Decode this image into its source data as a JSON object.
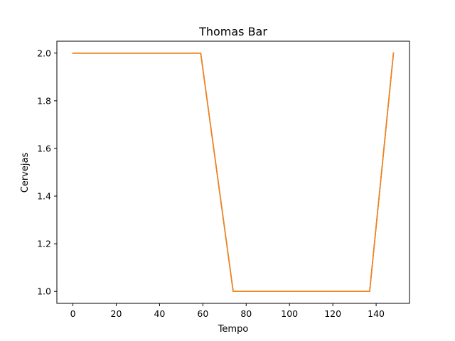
{
  "chart_data": {
    "type": "line",
    "title": "Thomas Bar",
    "xlabel": "Tempo",
    "ylabel": "Cervejas",
    "xlim": [
      -7.4,
      155.4
    ],
    "ylim": [
      0.95,
      2.05
    ],
    "xticks": [
      0,
      20,
      40,
      60,
      80,
      100,
      120,
      140
    ],
    "yticks": [
      1.0,
      1.2,
      1.4,
      1.6,
      1.8,
      2.0
    ],
    "ytick_labels": [
      "1.0",
      "1.2",
      "1.4",
      "1.6",
      "1.8",
      "2.0"
    ],
    "grid": false,
    "series": [
      {
        "color": "#1f77b4",
        "x": [
          0,
          59,
          74,
          137,
          148
        ],
        "y": [
          2,
          2,
          1,
          1,
          2
        ]
      },
      {
        "color": "#ff7f0e",
        "x": [
          0,
          59,
          74,
          137,
          148
        ],
        "y": [
          2,
          2,
          1,
          1,
          2
        ]
      }
    ]
  }
}
